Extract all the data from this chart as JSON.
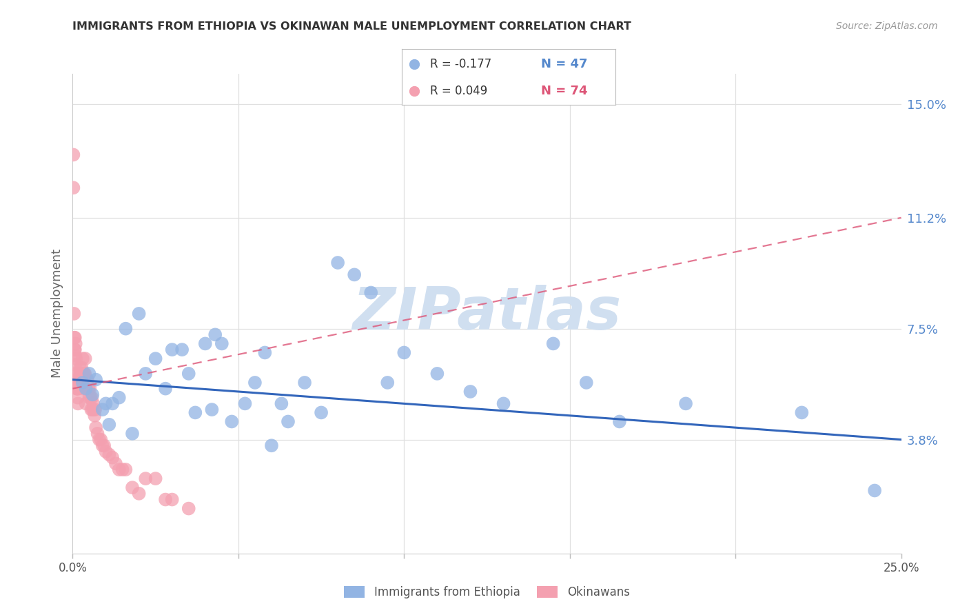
{
  "title": "IMMIGRANTS FROM ETHIOPIA VS OKINAWAN MALE UNEMPLOYMENT CORRELATION CHART",
  "source": "Source: ZipAtlas.com",
  "ylabel": "Male Unemployment",
  "ytick_labels": [
    "3.8%",
    "7.5%",
    "11.2%",
    "15.0%"
  ],
  "ytick_vals": [
    0.038,
    0.075,
    0.112,
    0.15
  ],
  "xlim": [
    0.0,
    0.25
  ],
  "ylim": [
    0.0,
    0.16
  ],
  "watermark": "ZIPatlas",
  "legend_blue_r": "R = -0.177",
  "legend_blue_n": "N = 47",
  "legend_pink_r": "R = 0.049",
  "legend_pink_n": "N = 74",
  "legend_blue_label": "Immigrants from Ethiopia",
  "legend_pink_label": "Okinawans",
  "blue_scatter_x": [
    0.003,
    0.004,
    0.005,
    0.006,
    0.007,
    0.009,
    0.01,
    0.011,
    0.012,
    0.014,
    0.016,
    0.018,
    0.02,
    0.022,
    0.025,
    0.028,
    0.03,
    0.033,
    0.035,
    0.037,
    0.04,
    0.042,
    0.043,
    0.045,
    0.048,
    0.052,
    0.055,
    0.058,
    0.06,
    0.063,
    0.065,
    0.07,
    0.075,
    0.08,
    0.085,
    0.09,
    0.095,
    0.1,
    0.11,
    0.12,
    0.13,
    0.145,
    0.155,
    0.165,
    0.185,
    0.22,
    0.242
  ],
  "blue_scatter_y": [
    0.057,
    0.055,
    0.06,
    0.053,
    0.058,
    0.048,
    0.05,
    0.043,
    0.05,
    0.052,
    0.075,
    0.04,
    0.08,
    0.06,
    0.065,
    0.055,
    0.068,
    0.068,
    0.06,
    0.047,
    0.07,
    0.048,
    0.073,
    0.07,
    0.044,
    0.05,
    0.057,
    0.067,
    0.036,
    0.05,
    0.044,
    0.057,
    0.047,
    0.097,
    0.093,
    0.087,
    0.057,
    0.067,
    0.06,
    0.054,
    0.05,
    0.07,
    0.057,
    0.044,
    0.05,
    0.047,
    0.021
  ],
  "pink_scatter_x": [
    0.0002,
    0.0002,
    0.0004,
    0.0005,
    0.0006,
    0.0007,
    0.0007,
    0.0008,
    0.0008,
    0.0009,
    0.001,
    0.001,
    0.0011,
    0.0012,
    0.0013,
    0.0014,
    0.0015,
    0.0016,
    0.0017,
    0.0018,
    0.0019,
    0.002,
    0.0021,
    0.0022,
    0.0023,
    0.0024,
    0.0025,
    0.0027,
    0.0028,
    0.003,
    0.0031,
    0.0032,
    0.0033,
    0.0035,
    0.0036,
    0.0037,
    0.0038,
    0.004,
    0.0042,
    0.0043,
    0.0044,
    0.0045,
    0.0046,
    0.0048,
    0.005,
    0.0052,
    0.0054,
    0.0056,
    0.0058,
    0.006,
    0.0062,
    0.0064,
    0.0066,
    0.0068,
    0.007,
    0.0075,
    0.008,
    0.0085,
    0.009,
    0.0095,
    0.01,
    0.011,
    0.012,
    0.013,
    0.014,
    0.015,
    0.016,
    0.018,
    0.02,
    0.022,
    0.025,
    0.028,
    0.03,
    0.035
  ],
  "pink_scatter_y": [
    0.133,
    0.122,
    0.08,
    0.072,
    0.068,
    0.072,
    0.068,
    0.066,
    0.063,
    0.07,
    0.065,
    0.06,
    0.058,
    0.055,
    0.055,
    0.055,
    0.052,
    0.05,
    0.055,
    0.058,
    0.057,
    0.06,
    0.058,
    0.062,
    0.058,
    0.06,
    0.06,
    0.062,
    0.06,
    0.065,
    0.057,
    0.06,
    0.055,
    0.06,
    0.058,
    0.06,
    0.065,
    0.05,
    0.055,
    0.058,
    0.055,
    0.058,
    0.055,
    0.055,
    0.052,
    0.055,
    0.052,
    0.048,
    0.052,
    0.048,
    0.05,
    0.048,
    0.046,
    0.048,
    0.042,
    0.04,
    0.038,
    0.038,
    0.036,
    0.036,
    0.034,
    0.033,
    0.032,
    0.03,
    0.028,
    0.028,
    0.028,
    0.022,
    0.02,
    0.025,
    0.025,
    0.018,
    0.018,
    0.015
  ],
  "blue_line_x": [
    0.0,
    0.25
  ],
  "blue_line_y": [
    0.058,
    0.038
  ],
  "pink_line_x": [
    0.0,
    0.25
  ],
  "pink_line_y": [
    0.055,
    0.112
  ],
  "blue_color": "#92B4E3",
  "pink_color": "#F4A0B0",
  "blue_line_color": "#3366BB",
  "pink_line_color": "#DD5577",
  "background_color": "#FFFFFF",
  "grid_color": "#E0E0E0",
  "title_color": "#333333",
  "axis_label_color": "#666666",
  "right_axis_color": "#5588CC",
  "watermark_color": "#D0DFF0",
  "xtick_positions": [
    0.0,
    0.05,
    0.1,
    0.15,
    0.2,
    0.25
  ],
  "xtick_labels": [
    "0.0%",
    "",
    "",
    "",
    "",
    "25.0%"
  ]
}
